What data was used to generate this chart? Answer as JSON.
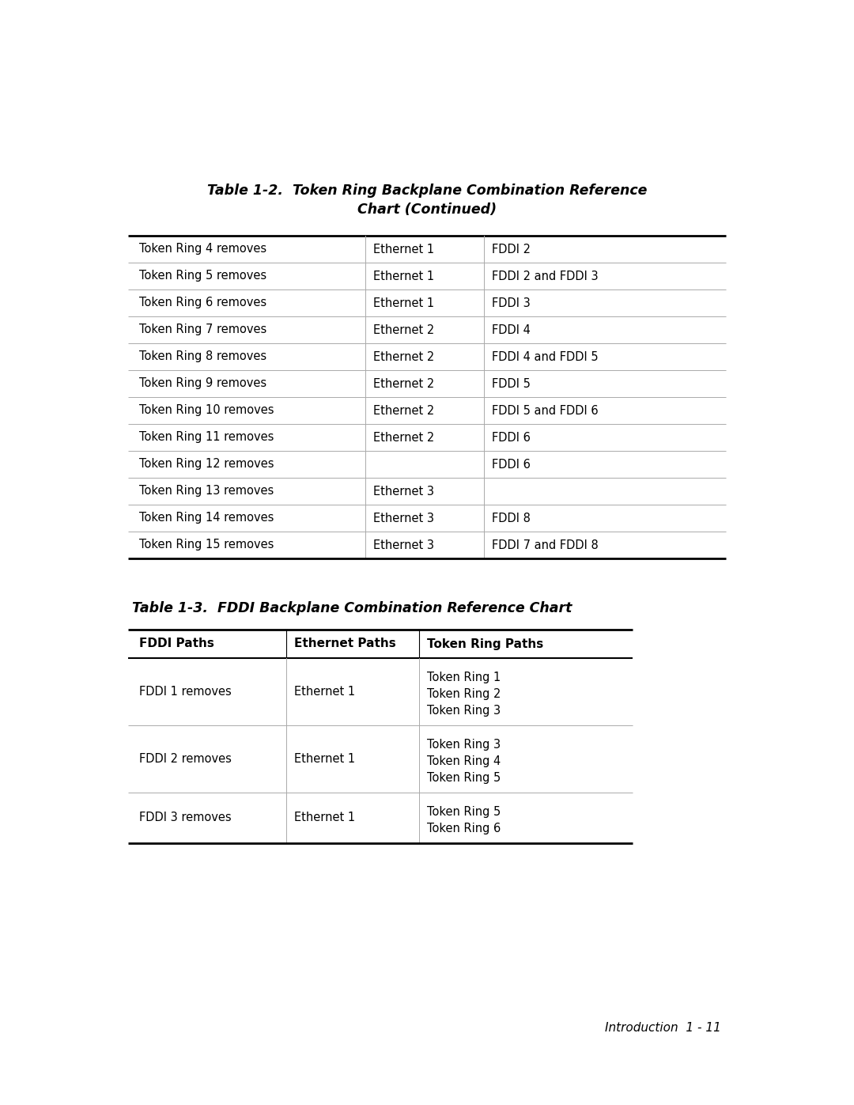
{
  "table1_title_line1": "Table 1-2.  Token Ring Backplane Combination Reference",
  "table1_title_line2": "Chart (Continued)",
  "table1_rows": [
    [
      "Token Ring 4 removes",
      "Ethernet 1",
      "FDDI 2"
    ],
    [
      "Token Ring 5 removes",
      "Ethernet 1",
      "FDDI 2 and FDDI 3"
    ],
    [
      "Token Ring 6 removes",
      "Ethernet 1",
      "FDDI 3"
    ],
    [
      "Token Ring 7 removes",
      "Ethernet 2",
      "FDDI 4"
    ],
    [
      "Token Ring 8 removes",
      "Ethernet 2",
      "FDDI 4 and FDDI 5"
    ],
    [
      "Token Ring 9 removes",
      "Ethernet 2",
      "FDDI 5"
    ],
    [
      "Token Ring 10 removes",
      "Ethernet 2",
      "FDDI 5 and FDDI 6"
    ],
    [
      "Token Ring 11 removes",
      "Ethernet 2",
      "FDDI 6"
    ],
    [
      "Token Ring 12 removes",
      "",
      "FDDI 6"
    ],
    [
      "Token Ring 13 removes",
      "Ethernet 3",
      ""
    ],
    [
      "Token Ring 14 removes",
      "Ethernet 3",
      "FDDI 8"
    ],
    [
      "Token Ring 15 removes",
      "Ethernet 3",
      "FDDI 7 and FDDI 8"
    ]
  ],
  "table2_title": "Table 1-3.  FDDI Backplane Combination Reference Chart",
  "table2_headers": [
    "FDDI Paths",
    "Ethernet Paths",
    "Token Ring Paths"
  ],
  "table2_rows": [
    [
      "FDDI 1 removes",
      "Ethernet 1",
      [
        "Token Ring 1",
        "Token Ring 2",
        "Token Ring 3"
      ]
    ],
    [
      "FDDI 2 removes",
      "Ethernet 1",
      [
        "Token Ring 3",
        "Token Ring 4",
        "Token Ring 5"
      ]
    ],
    [
      "FDDI 3 removes",
      "Ethernet 1",
      [
        "Token Ring 5",
        "Token Ring 6"
      ]
    ]
  ],
  "footer_text": "Introduction  1 - 11",
  "bg_color": "#ffffff",
  "text_color": "#000000",
  "thick_line_color": "#000000",
  "thin_line_color": "#aaaaaa",
  "font_size": 10.5,
  "title_font_size": 12.5,
  "header_font_size": 11.0
}
